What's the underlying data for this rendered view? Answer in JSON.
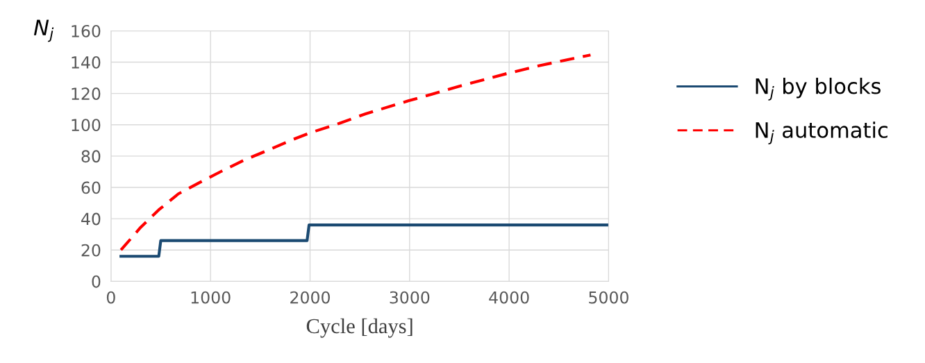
{
  "chart_data": {
    "type": "line",
    "xlabel": "Cycle [days]",
    "ylabel": "N$_{j}$",
    "xlim": [
      0,
      5000
    ],
    "xticks": [
      0,
      1000,
      2000,
      3000,
      4000,
      5000
    ],
    "ylim": [
      0,
      160
    ],
    "yticks": [
      0,
      20,
      40,
      60,
      80,
      100,
      120,
      140,
      160
    ],
    "grid": true,
    "legend": "right",
    "series": [
      {
        "name": "N$_{j}$ by blocks",
        "color": "#1b4a72",
        "line_style": "solid",
        "x": [
          100,
          480,
          500,
          1970,
          1990,
          5000
        ],
        "values": [
          16,
          16,
          26,
          26,
          36,
          36
        ]
      },
      {
        "name": "N$_{j}$ automatic",
        "color": "#ff0000",
        "line_style": "dashed",
        "x": [
          100,
          297,
          479,
          677,
          908,
          1106,
          1337,
          1568,
          1832,
          1997,
          2294,
          2558,
          2987,
          3218,
          3548,
          3977,
          4307,
          4538,
          4818
        ],
        "values": [
          20,
          34.4,
          45.6,
          55.9,
          63.7,
          70.2,
          77.4,
          83.5,
          90.7,
          94.8,
          100.9,
          107,
          115.3,
          119.4,
          125.5,
          132.7,
          137.8,
          140.9,
          144.6
        ]
      }
    ]
  }
}
